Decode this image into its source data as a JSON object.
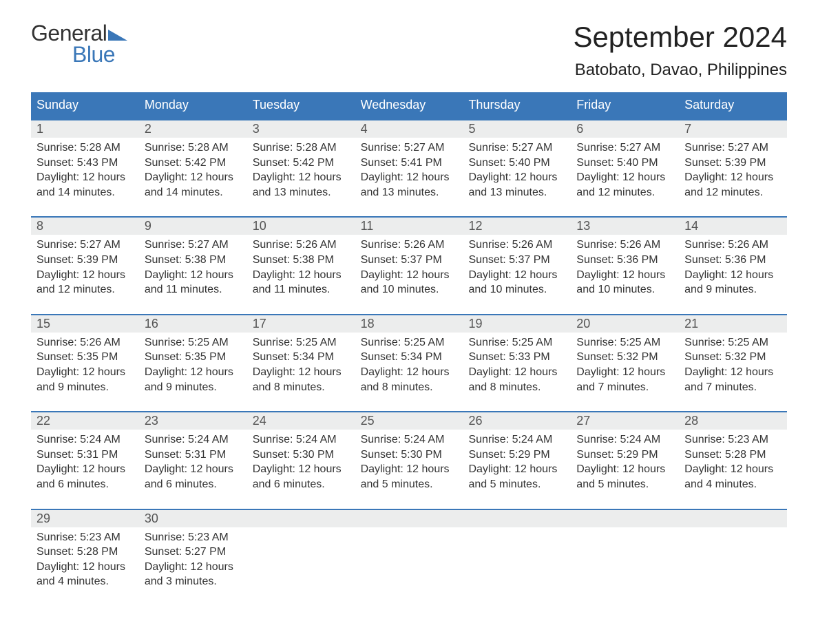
{
  "logo": {
    "top": "General",
    "bottom": "Blue",
    "icon_color": "#3a77b8"
  },
  "title": "September 2024",
  "location": "Batobato, Davao, Philippines",
  "colors": {
    "header_bg": "#3a77b8",
    "header_text": "#ffffff",
    "daynum_bg": "#eceded",
    "week_border": "#3a77b8",
    "text": "#222222"
  },
  "weekdays": [
    "Sunday",
    "Monday",
    "Tuesday",
    "Wednesday",
    "Thursday",
    "Friday",
    "Saturday"
  ],
  "labels": {
    "sunrise": "Sunrise:",
    "sunset": "Sunset:",
    "daylight": "Daylight:"
  },
  "weeks": [
    [
      {
        "n": "1",
        "sunrise": "5:28 AM",
        "sunset": "5:43 PM",
        "daylight": "12 hours and 14 minutes."
      },
      {
        "n": "2",
        "sunrise": "5:28 AM",
        "sunset": "5:42 PM",
        "daylight": "12 hours and 14 minutes."
      },
      {
        "n": "3",
        "sunrise": "5:28 AM",
        "sunset": "5:42 PM",
        "daylight": "12 hours and 13 minutes."
      },
      {
        "n": "4",
        "sunrise": "5:27 AM",
        "sunset": "5:41 PM",
        "daylight": "12 hours and 13 minutes."
      },
      {
        "n": "5",
        "sunrise": "5:27 AM",
        "sunset": "5:40 PM",
        "daylight": "12 hours and 13 minutes."
      },
      {
        "n": "6",
        "sunrise": "5:27 AM",
        "sunset": "5:40 PM",
        "daylight": "12 hours and 12 minutes."
      },
      {
        "n": "7",
        "sunrise": "5:27 AM",
        "sunset": "5:39 PM",
        "daylight": "12 hours and 12 minutes."
      }
    ],
    [
      {
        "n": "8",
        "sunrise": "5:27 AM",
        "sunset": "5:39 PM",
        "daylight": "12 hours and 12 minutes."
      },
      {
        "n": "9",
        "sunrise": "5:27 AM",
        "sunset": "5:38 PM",
        "daylight": "12 hours and 11 minutes."
      },
      {
        "n": "10",
        "sunrise": "5:26 AM",
        "sunset": "5:38 PM",
        "daylight": "12 hours and 11 minutes."
      },
      {
        "n": "11",
        "sunrise": "5:26 AM",
        "sunset": "5:37 PM",
        "daylight": "12 hours and 10 minutes."
      },
      {
        "n": "12",
        "sunrise": "5:26 AM",
        "sunset": "5:37 PM",
        "daylight": "12 hours and 10 minutes."
      },
      {
        "n": "13",
        "sunrise": "5:26 AM",
        "sunset": "5:36 PM",
        "daylight": "12 hours and 10 minutes."
      },
      {
        "n": "14",
        "sunrise": "5:26 AM",
        "sunset": "5:36 PM",
        "daylight": "12 hours and 9 minutes."
      }
    ],
    [
      {
        "n": "15",
        "sunrise": "5:26 AM",
        "sunset": "5:35 PM",
        "daylight": "12 hours and 9 minutes."
      },
      {
        "n": "16",
        "sunrise": "5:25 AM",
        "sunset": "5:35 PM",
        "daylight": "12 hours and 9 minutes."
      },
      {
        "n": "17",
        "sunrise": "5:25 AM",
        "sunset": "5:34 PM",
        "daylight": "12 hours and 8 minutes."
      },
      {
        "n": "18",
        "sunrise": "5:25 AM",
        "sunset": "5:34 PM",
        "daylight": "12 hours and 8 minutes."
      },
      {
        "n": "19",
        "sunrise": "5:25 AM",
        "sunset": "5:33 PM",
        "daylight": "12 hours and 8 minutes."
      },
      {
        "n": "20",
        "sunrise": "5:25 AM",
        "sunset": "5:32 PM",
        "daylight": "12 hours and 7 minutes."
      },
      {
        "n": "21",
        "sunrise": "5:25 AM",
        "sunset": "5:32 PM",
        "daylight": "12 hours and 7 minutes."
      }
    ],
    [
      {
        "n": "22",
        "sunrise": "5:24 AM",
        "sunset": "5:31 PM",
        "daylight": "12 hours and 6 minutes."
      },
      {
        "n": "23",
        "sunrise": "5:24 AM",
        "sunset": "5:31 PM",
        "daylight": "12 hours and 6 minutes."
      },
      {
        "n": "24",
        "sunrise": "5:24 AM",
        "sunset": "5:30 PM",
        "daylight": "12 hours and 6 minutes."
      },
      {
        "n": "25",
        "sunrise": "5:24 AM",
        "sunset": "5:30 PM",
        "daylight": "12 hours and 5 minutes."
      },
      {
        "n": "26",
        "sunrise": "5:24 AM",
        "sunset": "5:29 PM",
        "daylight": "12 hours and 5 minutes."
      },
      {
        "n": "27",
        "sunrise": "5:24 AM",
        "sunset": "5:29 PM",
        "daylight": "12 hours and 5 minutes."
      },
      {
        "n": "28",
        "sunrise": "5:23 AM",
        "sunset": "5:28 PM",
        "daylight": "12 hours and 4 minutes."
      }
    ],
    [
      {
        "n": "29",
        "sunrise": "5:23 AM",
        "sunset": "5:28 PM",
        "daylight": "12 hours and 4 minutes."
      },
      {
        "n": "30",
        "sunrise": "5:23 AM",
        "sunset": "5:27 PM",
        "daylight": "12 hours and 3 minutes."
      },
      null,
      null,
      null,
      null,
      null
    ]
  ]
}
